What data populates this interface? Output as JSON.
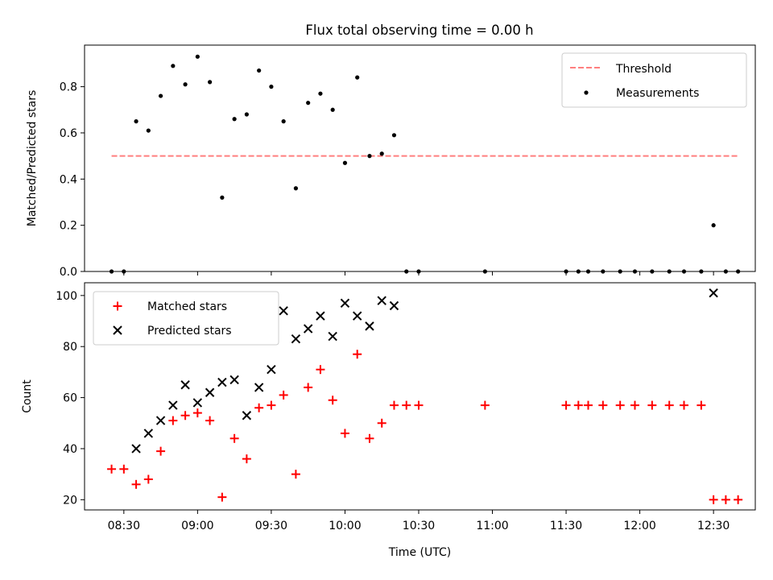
{
  "title": "Flux total observing time = 0.00 h",
  "chart_data": [
    {
      "type": "scatter",
      "ylabel": "Matched/Predicted stars",
      "xlim": [
        "08:14",
        "12:47"
      ],
      "ylim": [
        0,
        0.98
      ],
      "yticks": [
        "0.0",
        "0.2",
        "0.4",
        "0.6",
        "0.8"
      ],
      "legend": {
        "position": "top-right",
        "threshold_label": "Threshold",
        "measurements_label": "Measurements"
      },
      "threshold": {
        "value": 0.5,
        "x_start": "08:25",
        "x_end": "12:40",
        "color": "#ff7f7f"
      },
      "measurements": {
        "color": "#000000",
        "points": [
          [
            "08:25",
            0.0
          ],
          [
            "08:30",
            0.0
          ],
          [
            "08:35",
            0.65
          ],
          [
            "08:40",
            0.61
          ],
          [
            "08:45",
            0.76
          ],
          [
            "08:50",
            0.89
          ],
          [
            "08:55",
            0.81
          ],
          [
            "09:00",
            0.93
          ],
          [
            "09:05",
            0.82
          ],
          [
            "09:10",
            0.32
          ],
          [
            "09:15",
            0.66
          ],
          [
            "09:20",
            0.68
          ],
          [
            "09:25",
            0.87
          ],
          [
            "09:30",
            0.8
          ],
          [
            "09:35",
            0.65
          ],
          [
            "09:40",
            0.36
          ],
          [
            "09:45",
            0.73
          ],
          [
            "09:50",
            0.77
          ],
          [
            "09:55",
            0.7
          ],
          [
            "10:00",
            0.47
          ],
          [
            "10:05",
            0.84
          ],
          [
            "10:10",
            0.5
          ],
          [
            "10:15",
            0.51
          ],
          [
            "10:20",
            0.59
          ],
          [
            "10:25",
            0.0
          ],
          [
            "10:30",
            0.0
          ],
          [
            "10:57",
            0.0
          ],
          [
            "11:30",
            0.0
          ],
          [
            "11:35",
            0.0
          ],
          [
            "11:39",
            0.0
          ],
          [
            "11:45",
            0.0
          ],
          [
            "11:52",
            0.0
          ],
          [
            "11:58",
            0.0
          ],
          [
            "12:05",
            0.0
          ],
          [
            "12:12",
            0.0
          ],
          [
            "12:18",
            0.0
          ],
          [
            "12:25",
            0.0
          ],
          [
            "12:30",
            0.2
          ],
          [
            "12:35",
            0.0
          ],
          [
            "12:40",
            0.0
          ]
        ]
      }
    },
    {
      "type": "scatter",
      "title": "",
      "xlabel": "Time (UTC)",
      "ylabel": "Count",
      "xlim": [
        "08:14",
        "12:47"
      ],
      "ylim": [
        16,
        105
      ],
      "xticks": [
        "08:30",
        "09:00",
        "09:30",
        "10:00",
        "10:30",
        "11:00",
        "11:30",
        "12:00",
        "12:30"
      ],
      "yticks": [
        "20",
        "40",
        "60",
        "80",
        "100"
      ],
      "legend": {
        "position": "top-left"
      },
      "series": [
        {
          "name": "Matched stars",
          "marker": "plus",
          "color": "#ff0000",
          "points": [
            [
              "08:25",
              32
            ],
            [
              "08:30",
              32
            ],
            [
              "08:35",
              26
            ],
            [
              "08:40",
              28
            ],
            [
              "08:45",
              39
            ],
            [
              "08:50",
              51
            ],
            [
              "08:55",
              53
            ],
            [
              "09:00",
              54
            ],
            [
              "09:05",
              51
            ],
            [
              "09:10",
              21
            ],
            [
              "09:15",
              44
            ],
            [
              "09:20",
              36
            ],
            [
              "09:25",
              56
            ],
            [
              "09:30",
              57
            ],
            [
              "09:35",
              61
            ],
            [
              "09:40",
              30
            ],
            [
              "09:45",
              64
            ],
            [
              "09:50",
              71
            ],
            [
              "09:55",
              59
            ],
            [
              "10:00",
              46
            ],
            [
              "10:05",
              77
            ],
            [
              "10:10",
              44
            ],
            [
              "10:15",
              50
            ],
            [
              "10:20",
              57
            ],
            [
              "10:25",
              57
            ],
            [
              "10:30",
              57
            ],
            [
              "10:57",
              57
            ],
            [
              "11:30",
              57
            ],
            [
              "11:35",
              57
            ],
            [
              "11:39",
              57
            ],
            [
              "11:45",
              57
            ],
            [
              "11:52",
              57
            ],
            [
              "11:58",
              57
            ],
            [
              "12:05",
              57
            ],
            [
              "12:12",
              57
            ],
            [
              "12:18",
              57
            ],
            [
              "12:25",
              57
            ],
            [
              "12:30",
              20
            ],
            [
              "12:35",
              20
            ],
            [
              "12:40",
              20
            ]
          ]
        },
        {
          "name": "Predicted stars",
          "marker": "x",
          "color": "#000000",
          "points": [
            [
              "08:35",
              40
            ],
            [
              "08:40",
              46
            ],
            [
              "08:45",
              51
            ],
            [
              "08:50",
              57
            ],
            [
              "08:55",
              65
            ],
            [
              "09:00",
              58
            ],
            [
              "09:05",
              62
            ],
            [
              "09:10",
              66
            ],
            [
              "09:15",
              67
            ],
            [
              "09:20",
              53
            ],
            [
              "09:25",
              64
            ],
            [
              "09:30",
              71
            ],
            [
              "09:35",
              94
            ],
            [
              "09:40",
              83
            ],
            [
              "09:45",
              87
            ],
            [
              "09:50",
              92
            ],
            [
              "09:55",
              84
            ],
            [
              "10:00",
              97
            ],
            [
              "10:05",
              92
            ],
            [
              "10:10",
              88
            ],
            [
              "10:15",
              98
            ],
            [
              "10:20",
              96
            ],
            [
              "12:30",
              101
            ]
          ]
        }
      ]
    }
  ]
}
